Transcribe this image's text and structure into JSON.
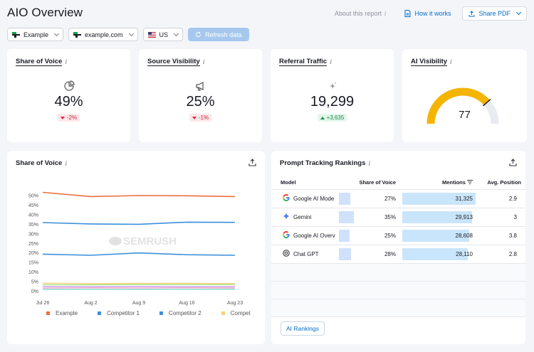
{
  "page": {
    "title": "AIO Overview",
    "about": "About this report",
    "how_it_works": "How it works",
    "share_pdf": "Share PDF"
  },
  "toolbar": {
    "project": "Example",
    "domain": "example.com",
    "country": "US",
    "refresh": "Refresh data"
  },
  "kpis": {
    "share_of_voice": {
      "title": "Share of Voice",
      "value": "49%",
      "delta": "-2%"
    },
    "source_visibility": {
      "title": "Source Visibility",
      "value": "25%",
      "delta": "-1%"
    },
    "referral_traffic": {
      "title": "Referral Traffic",
      "value": "19,299",
      "delta": "+3,635"
    },
    "ai_visibility": {
      "title": "AI Visibility",
      "value": "77",
      "gauge_fraction": 0.77
    }
  },
  "sov_chart": {
    "title": "Share of Voice",
    "watermark": "SEMRUSH"
  },
  "chart_data": {
    "type": "line",
    "x": [
      "Jul 26",
      "Aug 2",
      "Aug 9",
      "Aug 16",
      "Aug 23"
    ],
    "y_ticks": [
      "0%",
      "5%",
      "10%",
      "15%",
      "20%",
      "25%",
      "30%",
      "35%",
      "40%",
      "45%",
      "50%"
    ],
    "ylim": [
      0,
      52
    ],
    "series": [
      {
        "name": "Example",
        "color": "#e96f3f",
        "values": [
          51.5,
          49.3,
          49.8,
          49.7,
          49.3
        ]
      },
      {
        "name": "Competitor 1",
        "color": "#3d8fdb",
        "values": [
          35.7,
          35.0,
          34.8,
          35.9,
          35.8
        ]
      },
      {
        "name": "Competitor 2",
        "color": "#3d8fdb",
        "values": [
          19.2,
          18.6,
          19.8,
          18.9,
          18.6
        ]
      },
      {
        "name": "Compet",
        "color": "#f5d27a",
        "values": [
          4.0,
          3.8,
          3.9,
          3.9,
          3.8
        ]
      },
      {
        "color": "#a6e27a",
        "values": [
          3.2,
          3.2,
          3.3,
          3.3,
          3.3
        ]
      },
      {
        "color": "#c79af1",
        "values": [
          2.2,
          2.2,
          2.3,
          2.2,
          2.2
        ]
      },
      {
        "color": "#f3a9c2",
        "values": [
          1.4,
          1.6,
          1.5,
          1.6,
          1.5
        ]
      },
      {
        "color": "#7fd9d0",
        "values": [
          0.7,
          0.8,
          0.7,
          0.8,
          0.8
        ]
      }
    ],
    "grid": false,
    "legend": "bottom"
  },
  "prompt_rankings": {
    "title": "Prompt Tracking Rankings",
    "headers": {
      "model": "Model",
      "sov": "Share of Voice",
      "mentions": "Mentions",
      "avg": "Avg. Position"
    },
    "rows": [
      {
        "model": "Google AI Mode",
        "icon": "google-icon",
        "sov": "27%",
        "sov_frac": 0.27,
        "mentions": "31,325",
        "mentions_frac": 1.0,
        "avg": "2.9"
      },
      {
        "model": "Gemini",
        "icon": "gemini-icon",
        "sov": "35%",
        "sov_frac": 0.35,
        "mentions": "29,913",
        "mentions_frac": 0.955,
        "avg": "3"
      },
      {
        "model": "Google AI Overv",
        "icon": "google-icon",
        "sov": "25%",
        "sov_frac": 0.25,
        "mentions": "28,608",
        "mentions_frac": 0.913,
        "avg": "3.8"
      },
      {
        "model": "Chat GPT",
        "icon": "chatgpt-icon",
        "sov": "28%",
        "sov_frac": 0.28,
        "mentions": "28,110",
        "mentions_frac": 0.897,
        "avg": "2.8"
      }
    ],
    "button": "AI Rankings"
  }
}
